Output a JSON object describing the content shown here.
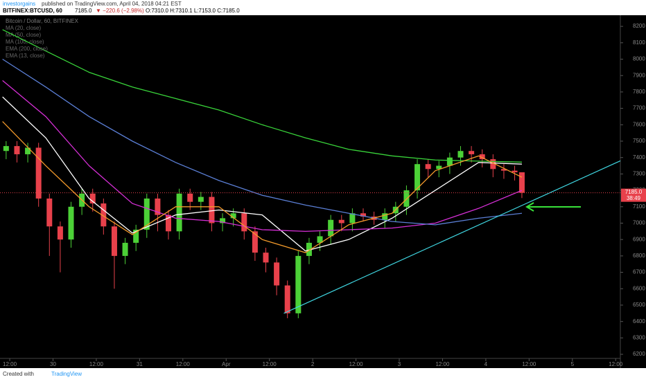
{
  "header": {
    "publisher": "investorgains",
    "published": "published on TradingView.com, April 04, 2018 04:21 EST",
    "symbol": "BITFINEX:BTCUSD, 60",
    "last": "7185.0",
    "change": "▼ −220.6 (−2.98%)",
    "ohlc": "O:7310.0 H:7310.1 L:7153.0 C:7185.0"
  },
  "footer": {
    "created": "Created with",
    "brand": "TradingView"
  },
  "chart_data": {
    "type": "candlestick",
    "title": "Bitcoin / Dollar, 60, BITFINEX",
    "up_color": "#4cd137",
    "down_color": "#e8414b",
    "x": [
      -1,
      2,
      5,
      8,
      11,
      14,
      17,
      20,
      23,
      26,
      29,
      32,
      35,
      38,
      41,
      44,
      47,
      50,
      53,
      56,
      59,
      62,
      65,
      68,
      71,
      74,
      77,
      80,
      83,
      86,
      89,
      92,
      95,
      98,
      101,
      104,
      107,
      110,
      113,
      116,
      119,
      122,
      125,
      128,
      131,
      134,
      137,
      140,
      142
    ],
    "open": [
      7440,
      7470,
      7420,
      7460,
      7150,
      6980,
      6900,
      7100,
      7180,
      7120,
      6980,
      6800,
      6880,
      6960,
      7150,
      7050,
      6950,
      7180,
      7130,
      7160,
      7000,
      7030,
      7060,
      6950,
      6820,
      6760,
      6620,
      6450,
      6800,
      6880,
      6920,
      7020,
      7000,
      7060,
      7040,
      7020,
      7060,
      7100,
      7200,
      7360,
      7330,
      7350,
      7400,
      7440,
      7420,
      7390,
      7330,
      7320,
      7310
    ],
    "high": [
      7500,
      7500,
      7490,
      7490,
      7180,
      7010,
      7130,
      7210,
      7210,
      7150,
      7010,
      6910,
      6990,
      7180,
      7180,
      7080,
      7210,
      7210,
      7190,
      7190,
      7060,
      7090,
      7090,
      6980,
      6850,
      6790,
      6650,
      6830,
      6910,
      6950,
      7050,
      7050,
      7090,
      7090,
      7070,
      7090,
      7130,
      7230,
      7390,
      7390,
      7380,
      7430,
      7470,
      7470,
      7450,
      7420,
      7360,
      7350,
      7310.1
    ],
    "low": [
      7390,
      7370,
      7370,
      7100,
      6800,
      6700,
      6850,
      7050,
      7070,
      6930,
      6600,
      6750,
      6830,
      6910,
      6950,
      6900,
      6900,
      7080,
      7080,
      6950,
      6950,
      6980,
      6900,
      6770,
      6700,
      6560,
      6420,
      6420,
      6750,
      6830,
      6870,
      6950,
      6950,
      7010,
      6990,
      6970,
      7010,
      7050,
      7150,
      7280,
      7280,
      7300,
      7350,
      7370,
      7340,
      7280,
      7270,
      7260,
      7153
    ],
    "close": [
      7470,
      7420,
      7460,
      7150,
      6980,
      6900,
      7100,
      7180,
      7120,
      6980,
      6800,
      6880,
      6960,
      7150,
      7050,
      6950,
      7180,
      7130,
      7160,
      7000,
      7030,
      7060,
      6950,
      6820,
      6760,
      6620,
      6450,
      6800,
      6880,
      6920,
      7020,
      7000,
      7060,
      7040,
      7020,
      7060,
      7100,
      7200,
      7360,
      7330,
      7350,
      7400,
      7440,
      7420,
      7390,
      7330,
      7320,
      7310,
      7185
    ],
    "series": [
      {
        "name": "MA (20, close)",
        "color": "#ffffff",
        "x": [
          -2,
          10,
          22,
          34,
          46,
          58,
          70,
          82,
          94,
          106,
          118,
          130,
          142
        ],
        "values": [
          7770,
          7520,
          7150,
          6940,
          7050,
          7080,
          7050,
          6830,
          6900,
          7030,
          7200,
          7370,
          7360
        ]
      },
      {
        "name": "MA (50, close)",
        "color": "#d62fd6",
        "x": [
          -2,
          10,
          22,
          34,
          46,
          58,
          70,
          82,
          94,
          106,
          118,
          130,
          142
        ],
        "values": [
          7870,
          7650,
          7350,
          7120,
          7030,
          7010,
          6960,
          6950,
          6960,
          6970,
          7000,
          7090,
          7200
        ]
      },
      {
        "name": "MA (100, close)",
        "color": "#5b7fd6",
        "x": [
          -2,
          10,
          22,
          34,
          46,
          58,
          70,
          82,
          94,
          106,
          118,
          130,
          142
        ],
        "values": [
          8000,
          7830,
          7650,
          7500,
          7370,
          7260,
          7170,
          7110,
          7060,
          7010,
          6990,
          7030,
          7060
        ]
      },
      {
        "name": "EMA (200, close)",
        "color": "#39d43a",
        "x": [
          -2,
          10,
          22,
          34,
          46,
          58,
          70,
          82,
          94,
          106,
          118,
          130,
          142
        ],
        "values": [
          8180,
          8050,
          7920,
          7830,
          7760,
          7690,
          7600,
          7520,
          7450,
          7410,
          7385,
          7378,
          7372
        ]
      },
      {
        "name": "EMA (13, close)",
        "color": "#f39a2b",
        "x": [
          -2,
          10,
          22,
          34,
          46,
          58,
          70,
          82,
          94,
          106,
          118,
          130,
          142
        ],
        "values": [
          7620,
          7350,
          7100,
          6930,
          7100,
          7100,
          6900,
          6820,
          6990,
          7060,
          7320,
          7410,
          7280
        ]
      }
    ],
    "trendline": {
      "color": "#3fd5e0",
      "x": [
        76,
        169.3
      ],
      "values": [
        6450,
        7380
      ]
    },
    "price_label": {
      "value": 7185,
      "label": "7185.0"
    },
    "countdown": "38:49",
    "xlim": [
      -2.7,
      169.3
    ],
    "ylim": [
      6175,
      8268
    ],
    "xticks": [
      {
        "value": 0,
        "label": "12:00"
      },
      {
        "value": 12,
        "label": "30"
      },
      {
        "value": 24,
        "label": "12:00"
      },
      {
        "value": 36,
        "label": "31"
      },
      {
        "value": 48,
        "label": "12:00"
      },
      {
        "value": 60,
        "label": "Apr"
      },
      {
        "value": 72,
        "label": "12:00"
      },
      {
        "value": 84,
        "label": "2"
      },
      {
        "value": 96,
        "label": "12:00"
      },
      {
        "value": 108,
        "label": "3"
      },
      {
        "value": 120,
        "label": "12:00"
      },
      {
        "value": 132,
        "label": "4"
      },
      {
        "value": 144,
        "label": "12:00"
      },
      {
        "value": 156,
        "label": "5"
      },
      {
        "value": 168,
        "label": "12:00"
      }
    ],
    "yticks": [
      6200,
      6300,
      6400,
      6500,
      6600,
      6700,
      6800,
      6900,
      7000,
      7100,
      7200,
      7300,
      7400,
      7500,
      7600,
      7700,
      7800,
      7900,
      8000,
      8100,
      8200
    ],
    "grid": false
  }
}
